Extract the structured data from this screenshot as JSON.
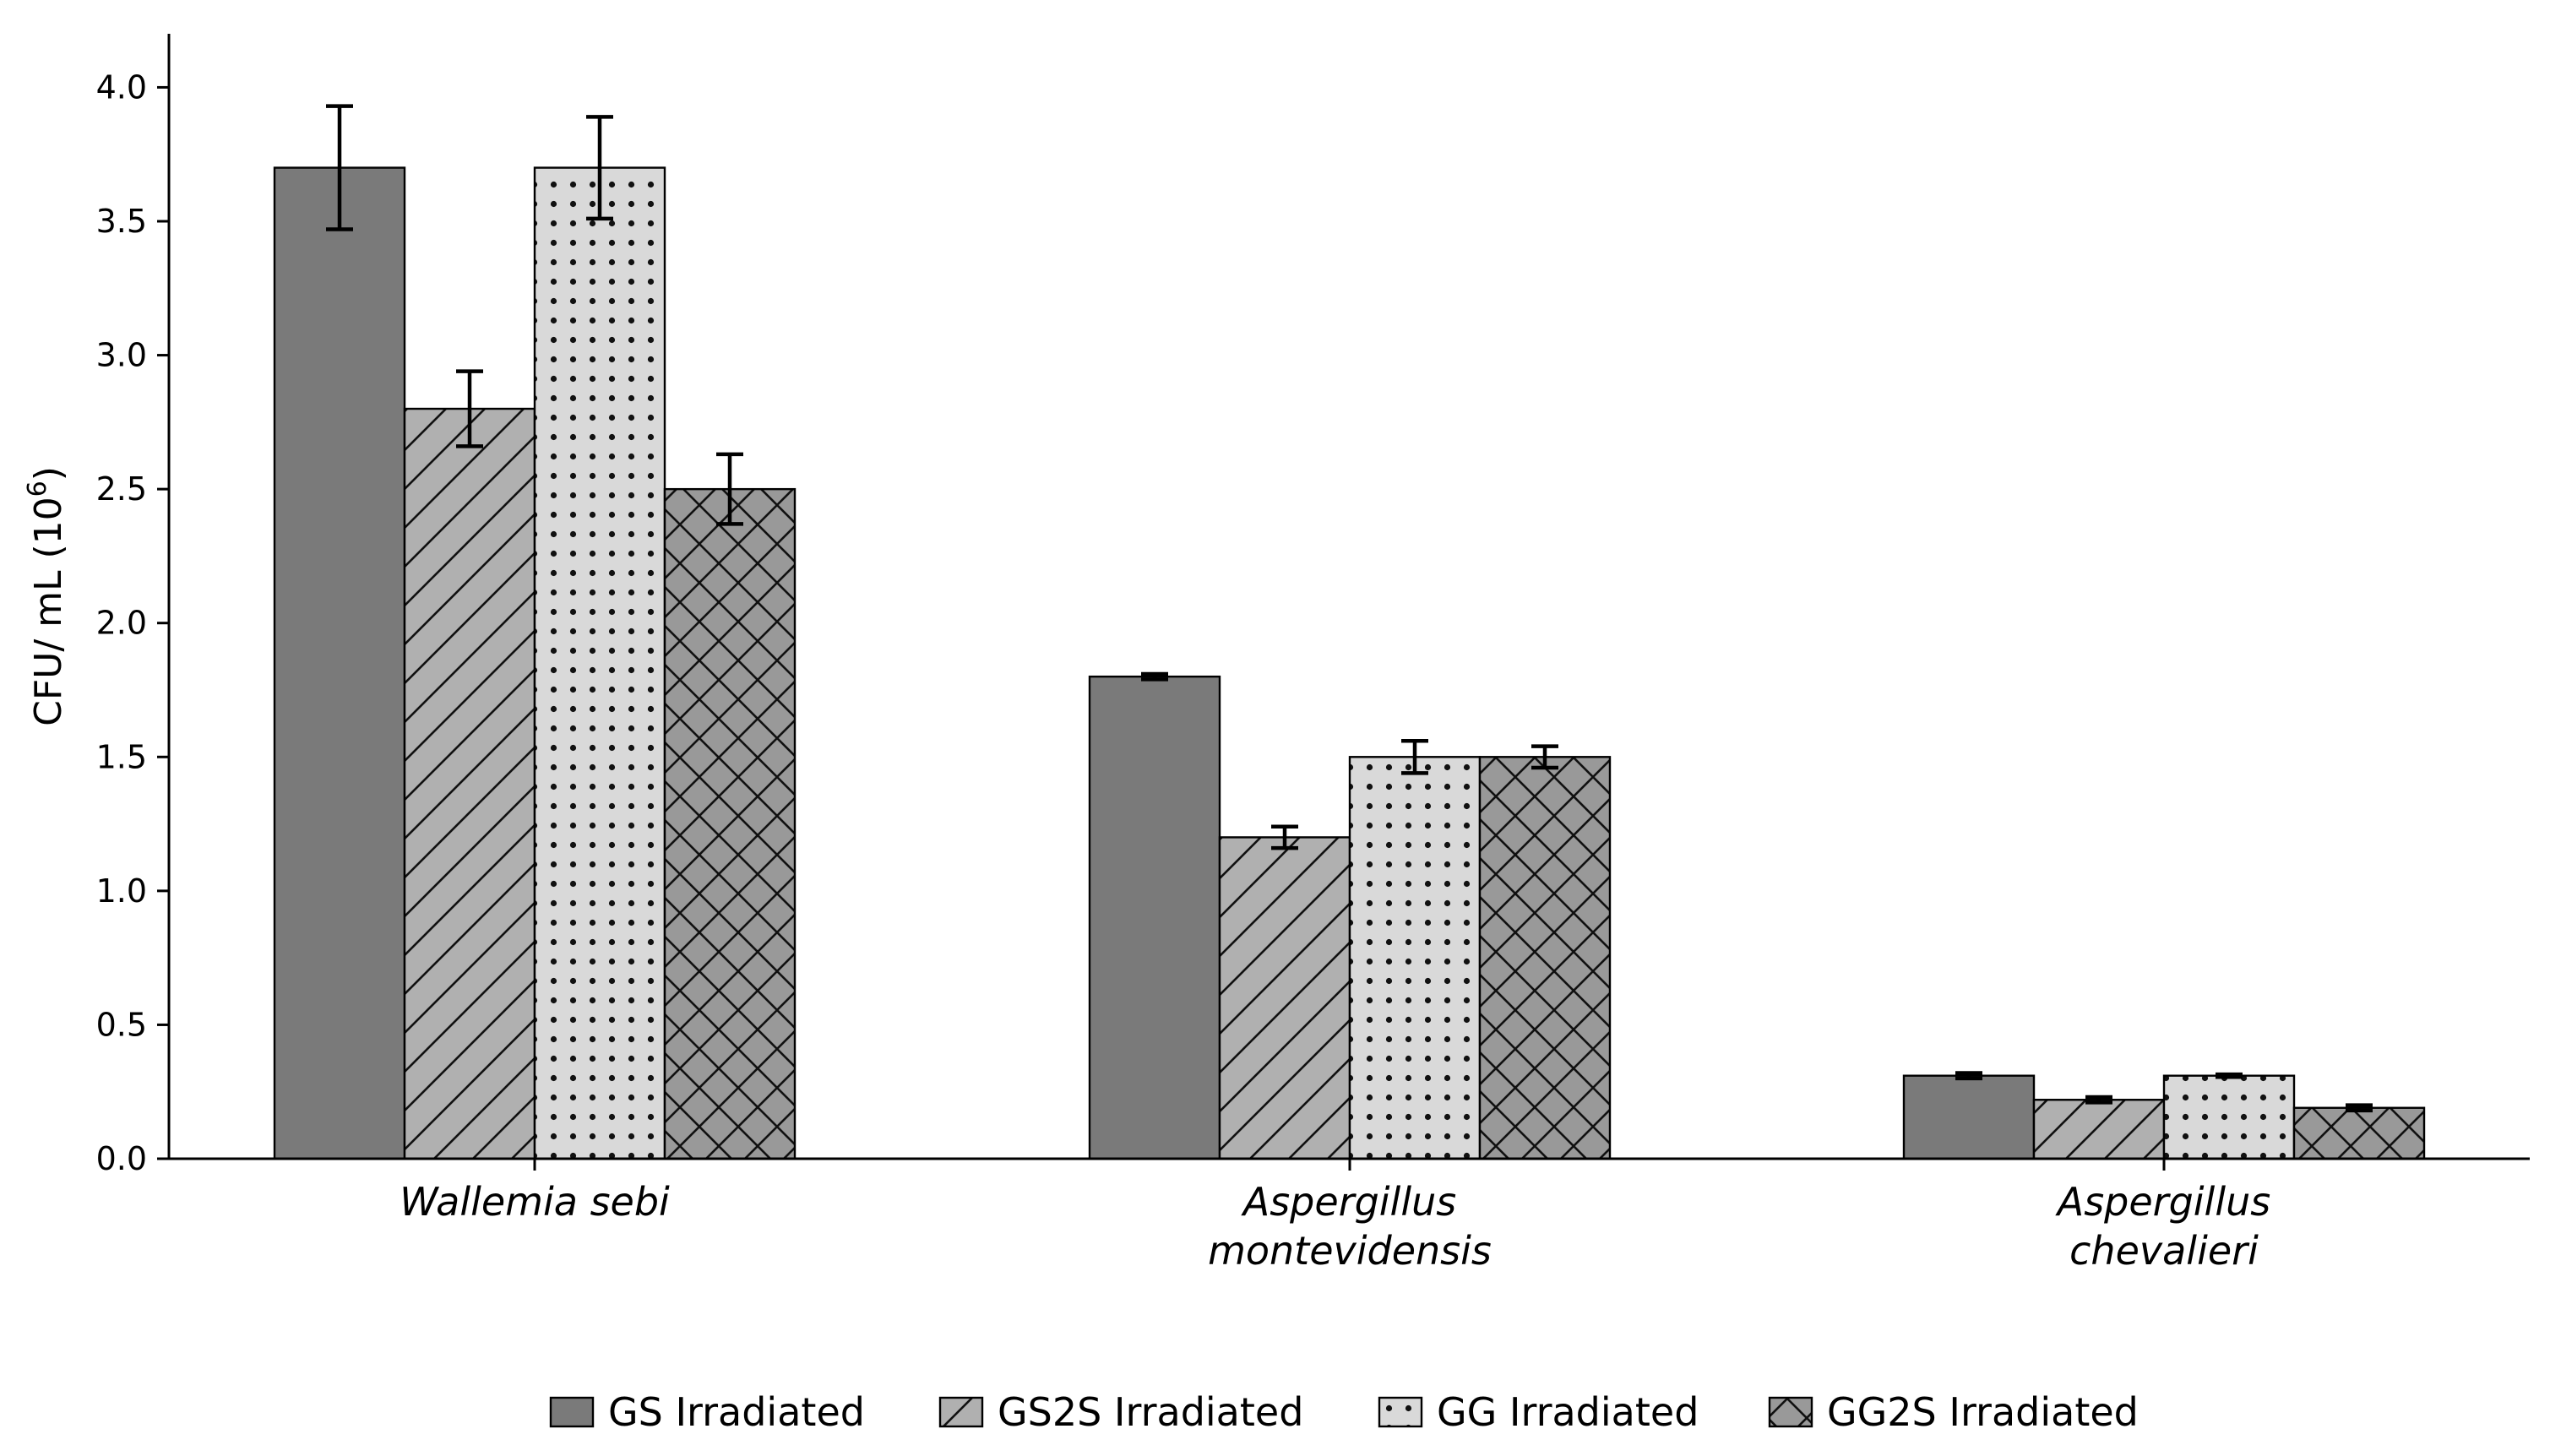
{
  "chart_data": {
    "type": "bar",
    "ylabel": "CFU/ mL (10",
    "ylabel_sup": "6",
    "ylabel_close": ")",
    "ylim": [
      0,
      4.2
    ],
    "yticks": [
      "0.0",
      "0.5",
      "1.0",
      "1.5",
      "2.0",
      "2.5",
      "3.0",
      "3.5",
      "4.0"
    ],
    "categories": [
      [
        "Wallemia sebi"
      ],
      [
        "Aspergillus",
        "montevidensis"
      ],
      [
        "Aspergillus",
        "chevalieri"
      ]
    ],
    "series": [
      {
        "name": "GS Irradiated",
        "values": [
          3.7,
          1.8,
          0.31
        ],
        "errors": [
          0.23,
          0.01,
          0.01
        ],
        "fill": "#7a7a7a",
        "pattern": "none"
      },
      {
        "name": "GS2S Irradiated",
        "values": [
          2.8,
          1.2,
          0.22
        ],
        "errors": [
          0.14,
          0.04,
          0.01
        ],
        "fill": "#b0b0b0",
        "pattern": "diagonal"
      },
      {
        "name": "GG Irradiated",
        "values": [
          3.7,
          1.5,
          0.31
        ],
        "errors": [
          0.19,
          0.06,
          0.005
        ],
        "fill": "#d9d9d9",
        "pattern": "dots"
      },
      {
        "name": "GG2S Irradiated",
        "values": [
          2.5,
          1.5,
          0.19
        ],
        "errors": [
          0.13,
          0.04,
          0.01
        ],
        "fill": "#999999",
        "pattern": "crosshatch"
      }
    ],
    "grid": false,
    "legend_position": "bottom"
  }
}
